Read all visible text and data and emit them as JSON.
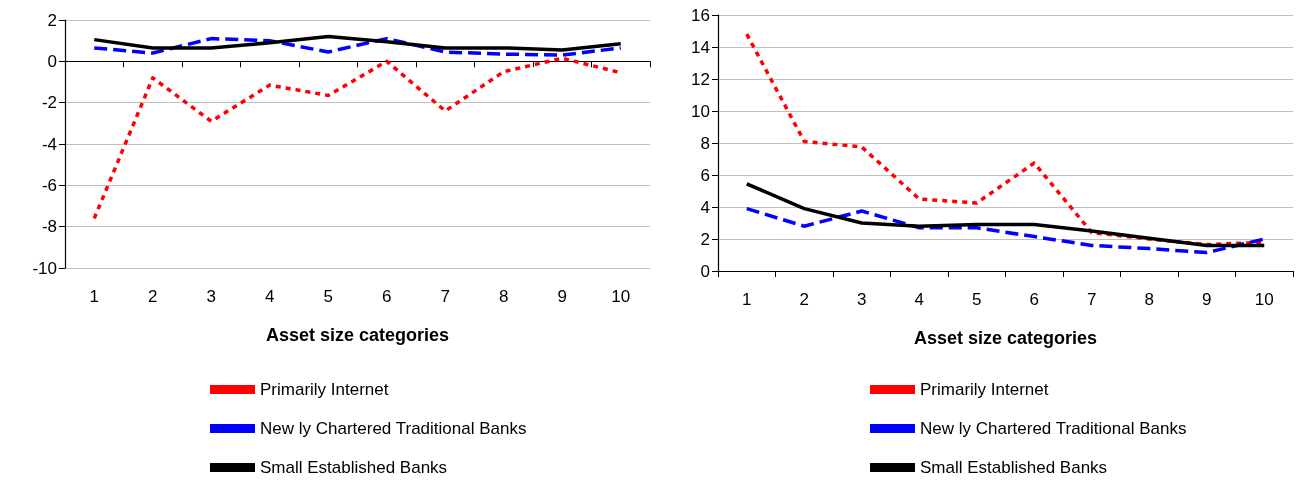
{
  "chart_data": [
    {
      "type": "line",
      "categories": [
        "1",
        "2",
        "3",
        "4",
        "5",
        "6",
        "7",
        "8",
        "9",
        "10"
      ],
      "xlabel": "Asset size categories",
      "ylim": [
        -10,
        2
      ],
      "yticks": [
        -10,
        -8,
        -6,
        -4,
        -2,
        0,
        2
      ],
      "grid": "y",
      "legend": "bottom",
      "marker": "none",
      "series": [
        {
          "name": "Primarily Internet",
          "color": "#ff0000",
          "line_style": "dotted",
          "values": [
            -7.6,
            -0.8,
            -2.9,
            -1.15,
            -1.65,
            0,
            -2.4,
            -0.5,
            0.15,
            -0.55
          ]
        },
        {
          "name": "New ly Chartered Traditional Banks",
          "color": "#0000ff",
          "line_style": "dashed",
          "values": [
            0.65,
            0.4,
            1.1,
            1.0,
            0.45,
            1.1,
            0.45,
            0.35,
            0.3,
            0.65
          ]
        },
        {
          "name": "Small Established Banks",
          "color": "#000000",
          "line_style": "solid",
          "values": [
            1.05,
            0.65,
            0.65,
            0.9,
            1.2,
            0.95,
            0.65,
            0.65,
            0.55,
            0.85
          ]
        }
      ]
    },
    {
      "type": "line",
      "categories": [
        "1",
        "2",
        "3",
        "4",
        "5",
        "6",
        "7",
        "8",
        "9",
        "10"
      ],
      "xlabel": "Asset size categories",
      "ylim": [
        0,
        16
      ],
      "yticks": [
        0,
        2,
        4,
        6,
        8,
        10,
        12,
        14,
        16
      ],
      "grid": "y",
      "legend": "bottom",
      "marker": "none",
      "series": [
        {
          "name": "Primarily Internet",
          "color": "#ff0000",
          "line_style": "dotted",
          "values": [
            14.8,
            8.1,
            7.75,
            4.5,
            4.25,
            6.75,
            2.4,
            2.0,
            1.65,
            1.8
          ]
        },
        {
          "name": "New ly Chartered Traditional Banks",
          "color": "#0000ff",
          "line_style": "dashed",
          "values": [
            3.9,
            2.8,
            3.75,
            2.7,
            2.7,
            2.15,
            1.6,
            1.4,
            1.15,
            2.0
          ]
        },
        {
          "name": "Small Established Banks",
          "color": "#000000",
          "line_style": "solid",
          "values": [
            5.45,
            3.9,
            3.0,
            2.8,
            2.9,
            2.9,
            2.5,
            2.05,
            1.6,
            1.6
          ]
        }
      ]
    }
  ]
}
